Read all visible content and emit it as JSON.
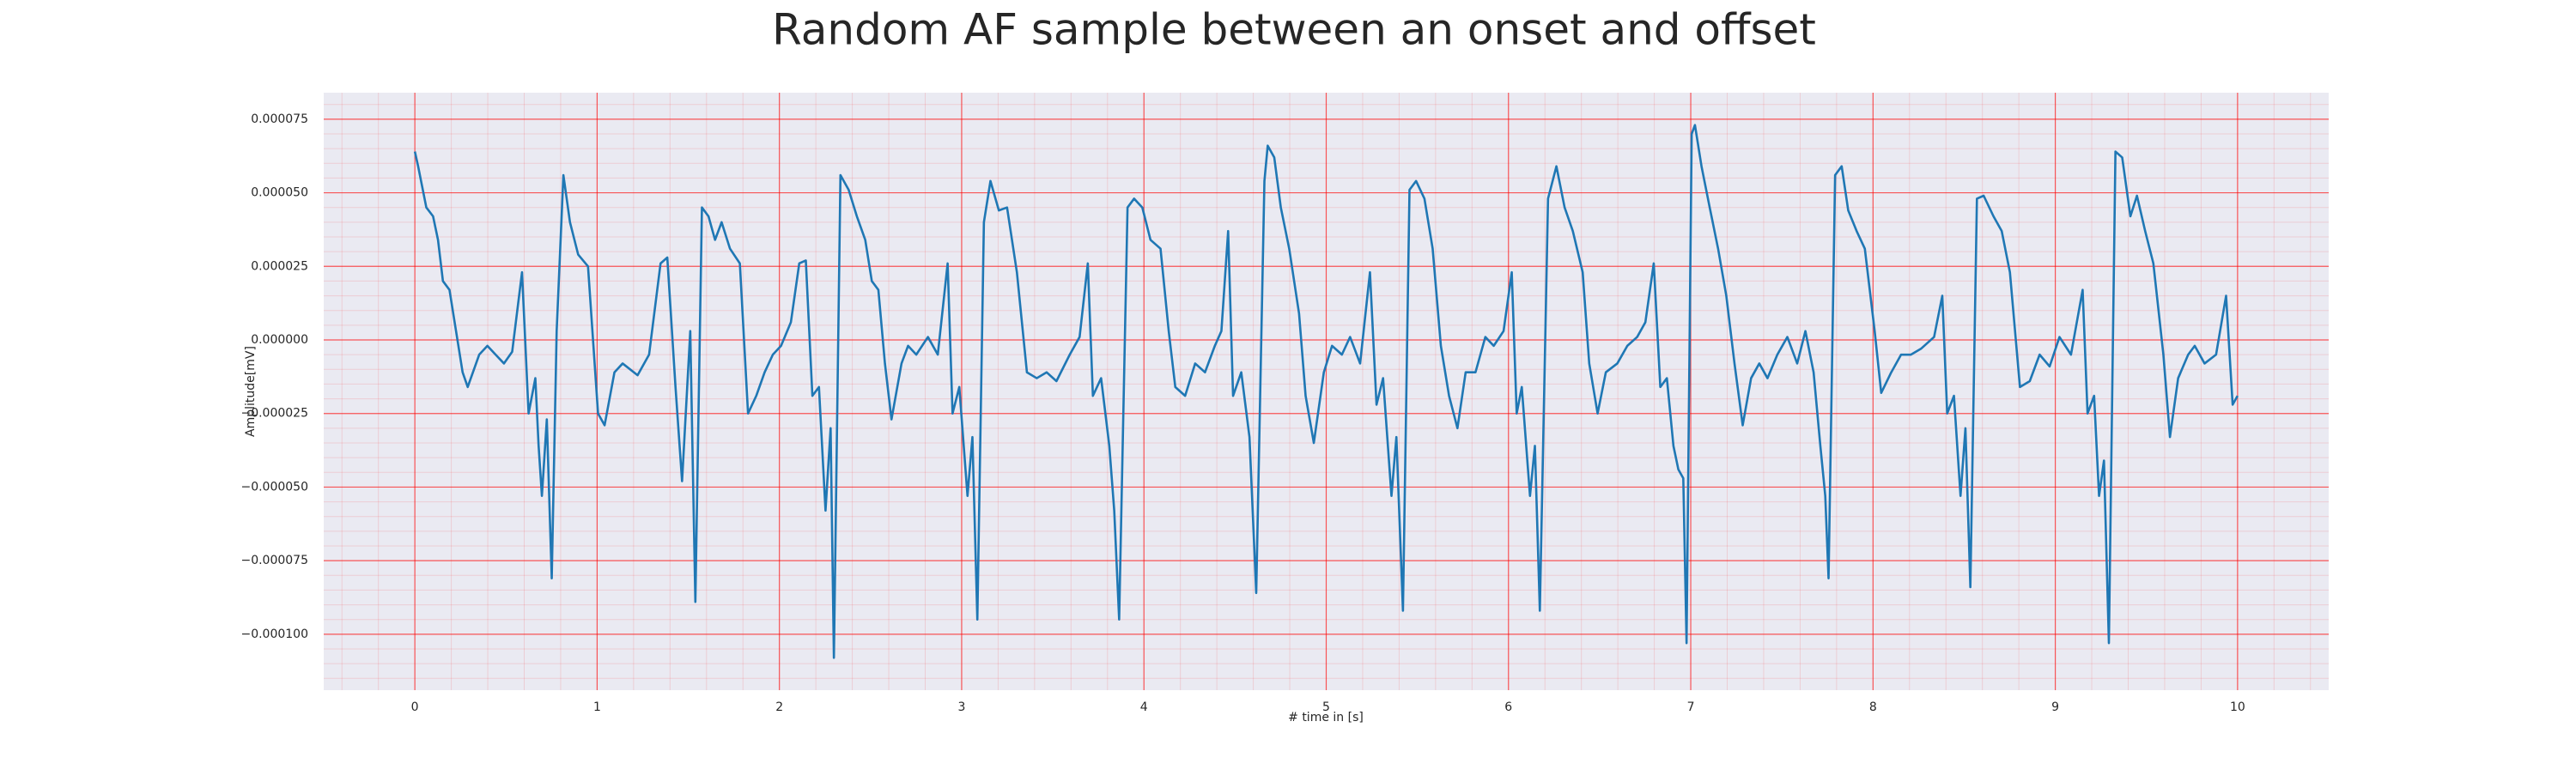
{
  "chart_data": {
    "type": "line",
    "title": "Random AF sample between an onset and offset",
    "xlabel": "# time in [s]",
    "ylabel": "Amplitude[mV]",
    "xlim": [
      -0.5,
      10.5
    ],
    "ylim": [
      -0.000119,
      8.4e-05
    ],
    "xticks": [
      0,
      1,
      2,
      3,
      4,
      5,
      6,
      7,
      8,
      9,
      10
    ],
    "yticks": [
      {
        "value": -0.0001,
        "label": "−0.000100"
      },
      {
        "value": -7.5e-05,
        "label": "−0.000075"
      },
      {
        "value": -5e-05,
        "label": "−0.000050"
      },
      {
        "value": -2.5e-05,
        "label": "−0.000025"
      },
      {
        "value": 0,
        "label": "0.000000"
      },
      {
        "value": 2.5e-05,
        "label": "0.000025"
      },
      {
        "value": 5e-05,
        "label": "0.000050"
      },
      {
        "value": 7.5e-05,
        "label": "0.000075"
      }
    ],
    "grid": true,
    "grid_color": "#ff0000",
    "background": "#eaeaf2",
    "series": [
      {
        "name": "Amplitude[mV]",
        "color": "#1f77b4",
        "x": [
          0,
          0.018,
          0.063,
          0.1,
          0.127,
          0.154,
          0.19,
          0.226,
          0.262,
          0.29,
          0.353,
          0.398,
          0.443,
          0.489,
          0.534,
          0.588,
          0.624,
          0.661,
          0.679,
          0.697,
          0.724,
          0.751,
          0.778,
          0.815,
          0.851,
          0.896,
          0.95,
          1.005,
          1.041,
          1.095,
          1.14,
          1.222,
          1.285,
          1.348,
          1.385,
          1.43,
          1.466,
          1.511,
          1.539,
          1.575,
          1.611,
          1.647,
          1.683,
          1.729,
          1.783,
          1.828,
          1.873,
          1.919,
          1.964,
          2.009,
          2.063,
          2.109,
          2.145,
          2.181,
          2.217,
          2.253,
          2.281,
          2.299,
          2.335,
          2.38,
          2.425,
          2.471,
          2.507,
          2.543,
          2.579,
          2.615,
          2.67,
          2.706,
          2.751,
          2.815,
          2.869,
          2.923,
          2.95,
          2.987,
          3.032,
          3.059,
          3.086,
          3.122,
          3.158,
          3.204,
          3.249,
          3.303,
          3.358,
          3.412,
          3.466,
          3.52,
          3.593,
          3.647,
          3.692,
          3.72,
          3.765,
          3.81,
          3.837,
          3.864,
          3.91,
          3.946,
          3.991,
          4.036,
          4.091,
          4.136,
          4.172,
          4.226,
          4.281,
          4.335,
          4.389,
          4.425,
          4.462,
          4.489,
          4.534,
          4.579,
          4.616,
          4.661,
          4.679,
          4.715,
          4.751,
          4.797,
          4.851,
          4.887,
          4.932,
          4.987,
          5.032,
          5.086,
          5.131,
          5.186,
          5.24,
          5.276,
          5.312,
          5.358,
          5.385,
          5.421,
          5.457,
          5.493,
          5.539,
          5.584,
          5.629,
          5.674,
          5.72,
          5.765,
          5.819,
          5.873,
          5.919,
          5.973,
          6.018,
          6.045,
          6.073,
          6.118,
          6.145,
          6.172,
          6.217,
          6.263,
          6.308,
          6.353,
          6.407,
          6.443,
          6.489,
          6.534,
          6.597,
          6.652,
          6.706,
          6.751,
          6.797,
          6.833,
          6.869,
          6.905,
          6.932,
          6.959,
          6.977,
          7.005,
          7.023,
          7.059,
          7.104,
          7.15,
          7.195,
          7.24,
          7.285,
          7.331,
          7.376,
          7.421,
          7.475,
          7.53,
          7.584,
          7.629,
          7.674,
          7.711,
          7.738,
          7.756,
          7.792,
          7.828,
          7.864,
          7.91,
          7.955,
          8.009,
          8.045,
          8.1,
          8.154,
          8.208,
          8.263,
          8.335,
          8.38,
          8.407,
          8.444,
          8.48,
          8.507,
          8.534,
          8.57,
          8.607,
          8.661,
          8.706,
          8.751,
          8.806,
          8.86,
          8.914,
          8.969,
          9.023,
          9.086,
          9.15,
          9.177,
          9.213,
          9.24,
          9.267,
          9.294,
          9.33,
          9.367,
          9.412,
          9.448,
          9.493,
          9.538,
          9.593,
          9.629,
          9.674,
          9.729,
          9.765,
          9.819,
          9.882,
          9.937,
          9.973,
          10.0
        ],
        "values": [
          6.4e-05,
          5.9e-05,
          4.5e-05,
          4.2e-05,
          3.4e-05,
          2e-05,
          1.7e-05,
          3e-06,
          -1.1e-05,
          -1.6e-05,
          -5e-06,
          -2e-06,
          -5e-06,
          -8e-06,
          -4e-06,
          2.3e-05,
          -2.5e-05,
          -1.3e-05,
          -3.6e-05,
          -5.3e-05,
          -2.7e-05,
          -8.1e-05,
          3e-06,
          5.6e-05,
          4e-05,
          2.9e-05,
          2.5e-05,
          -2.5e-05,
          -2.9e-05,
          -1.1e-05,
          -8e-06,
          -1.2e-05,
          -5e-06,
          2.6e-05,
          2.8e-05,
          -1.6e-05,
          -4.8e-05,
          3e-06,
          -8.9e-05,
          4.5e-05,
          4.2e-05,
          3.4e-05,
          4e-05,
          3.1e-05,
          2.6e-05,
          -2.5e-05,
          -1.9e-05,
          -1.1e-05,
          -5e-06,
          -2e-06,
          6e-06,
          2.6e-05,
          2.7e-05,
          -1.9e-05,
          -1.6e-05,
          -5.8e-05,
          -3e-05,
          -0.000108,
          5.6e-05,
          5.1e-05,
          4.2e-05,
          3.4e-05,
          2e-05,
          1.7e-05,
          -8e-06,
          -2.7e-05,
          -8e-06,
          -2e-06,
          -5e-06,
          1e-06,
          -5e-06,
          2.6e-05,
          -2.5e-05,
          -1.6e-05,
          -5.3e-05,
          -3.3e-05,
          -9.5e-05,
          4e-05,
          5.4e-05,
          4.4e-05,
          4.5e-05,
          2.3e-05,
          -1.1e-05,
          -1.3e-05,
          -1.1e-05,
          -1.4e-05,
          -5e-06,
          1e-06,
          2.6e-05,
          -1.9e-05,
          -1.3e-05,
          -3.6e-05,
          -5.8e-05,
          -9.5e-05,
          4.5e-05,
          4.8e-05,
          4.5e-05,
          3.4e-05,
          3.1e-05,
          3e-06,
          -1.6e-05,
          -1.9e-05,
          -8e-06,
          -1.1e-05,
          -2e-06,
          3e-06,
          3.7e-05,
          -1.9e-05,
          -1.1e-05,
          -3.3e-05,
          -8.6e-05,
          5.4e-05,
          6.6e-05,
          6.2e-05,
          4.5e-05,
          3.1e-05,
          9e-06,
          -1.9e-05,
          -3.5e-05,
          -1.1e-05,
          -2e-06,
          -5e-06,
          1e-06,
          -8e-06,
          2.3e-05,
          -2.2e-05,
          -1.3e-05,
          -5.3e-05,
          -3.3e-05,
          -9.2e-05,
          5.1e-05,
          5.4e-05,
          4.8e-05,
          3.1e-05,
          -2e-06,
          -1.9e-05,
          -3e-05,
          -1.1e-05,
          -1.1e-05,
          1e-06,
          -2e-06,
          3e-06,
          2.3e-05,
          -2.5e-05,
          -1.6e-05,
          -5.3e-05,
          -3.6e-05,
          -9.2e-05,
          4.8e-05,
          5.9e-05,
          4.5e-05,
          3.7e-05,
          2.3e-05,
          -8e-06,
          -2.5e-05,
          -1.1e-05,
          -8e-06,
          -2e-06,
          1e-06,
          6e-06,
          2.6e-05,
          -1.6e-05,
          -1.3e-05,
          -3.6e-05,
          -4.4e-05,
          -4.7e-05,
          -0.000103,
          7e-05,
          7.3e-05,
          5.9e-05,
          4.5e-05,
          3.1e-05,
          1.5e-05,
          -8e-06,
          -2.9e-05,
          -1.3e-05,
          -8e-06,
          -1.3e-05,
          -5e-06,
          1e-06,
          -8e-06,
          3e-06,
          -1.1e-05,
          -3.6e-05,
          -5.3e-05,
          -8.1e-05,
          5.6e-05,
          5.9e-05,
          4.4e-05,
          3.7e-05,
          3.1e-05,
          3e-06,
          -1.8e-05,
          -1.1e-05,
          -5e-06,
          -5e-06,
          -3e-06,
          1e-06,
          1.5e-05,
          -2.5e-05,
          -1.9e-05,
          -5.3e-05,
          -3e-05,
          -8.4e-05,
          4.8e-05,
          4.9e-05,
          4.2e-05,
          3.7e-05,
          2.3e-05,
          -1.6e-05,
          -1.4e-05,
          -5e-06,
          -9e-06,
          1e-06,
          -5e-06,
          1.7e-05,
          -2.5e-05,
          -1.9e-05,
          -5.3e-05,
          -4.1e-05,
          -0.000103,
          6.4e-05,
          6.2e-05,
          4.2e-05,
          4.9e-05,
          3.7e-05,
          2.6e-05,
          -5e-06,
          -3.3e-05,
          -1.3e-05,
          -5e-06,
          -2e-06,
          -8e-06,
          -5e-06,
          1.5e-05,
          -2.2e-05,
          -1.9e-05
        ]
      }
    ]
  }
}
